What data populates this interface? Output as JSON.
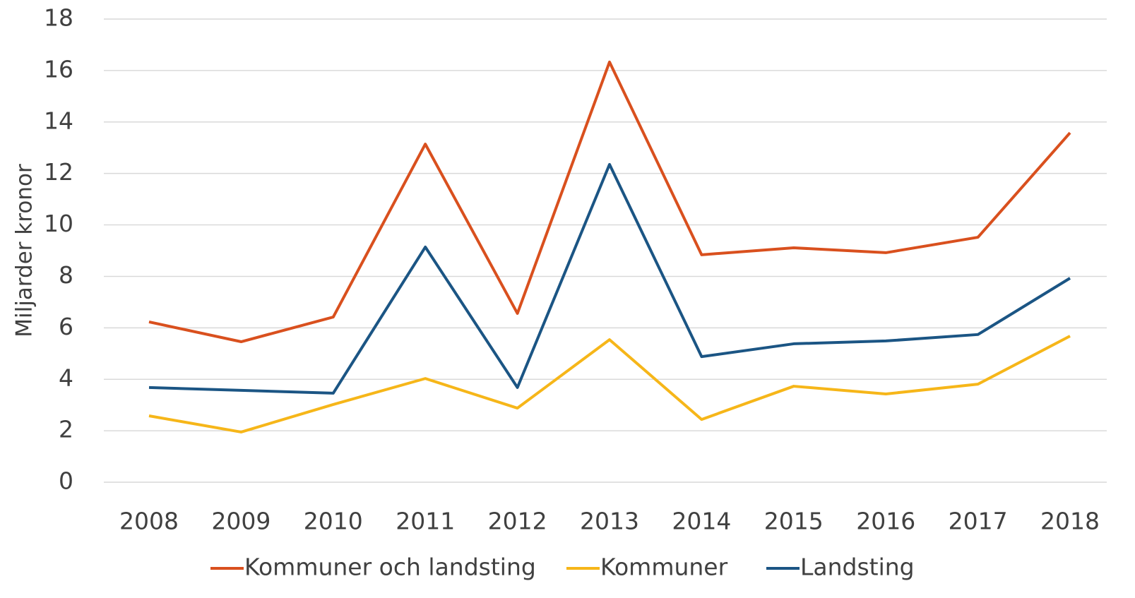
{
  "chart_data": {
    "type": "line",
    "y_label": "Miljarder kronor",
    "categories": [
      "2008",
      "2009",
      "2010",
      "2011",
      "2012",
      "2013",
      "2014",
      "2015",
      "2016",
      "2017",
      "2018"
    ],
    "series": [
      {
        "name": "Kommuner och landsting",
        "color": "#d9501e",
        "values": [
          6.23,
          5.46,
          6.42,
          13.14,
          6.56,
          16.33,
          8.84,
          9.11,
          8.92,
          9.52,
          13.58
        ]
      },
      {
        "name": "Kommuner",
        "color": "#f6b619",
        "values": [
          2.58,
          1.95,
          3.02,
          4.03,
          2.88,
          5.54,
          2.44,
          3.73,
          3.43,
          3.81,
          5.68
        ]
      },
      {
        "name": "Landsting",
        "color": "#1b5584",
        "values": [
          3.68,
          3.57,
          3.46,
          9.14,
          3.68,
          12.35,
          4.88,
          5.38,
          5.49,
          5.74,
          7.93
        ]
      }
    ],
    "ylim": [
      0,
      18
    ],
    "yticks": [
      0,
      2,
      4,
      6,
      8,
      10,
      12,
      14,
      16,
      18
    ],
    "grid": true,
    "legend": "bottom"
  }
}
